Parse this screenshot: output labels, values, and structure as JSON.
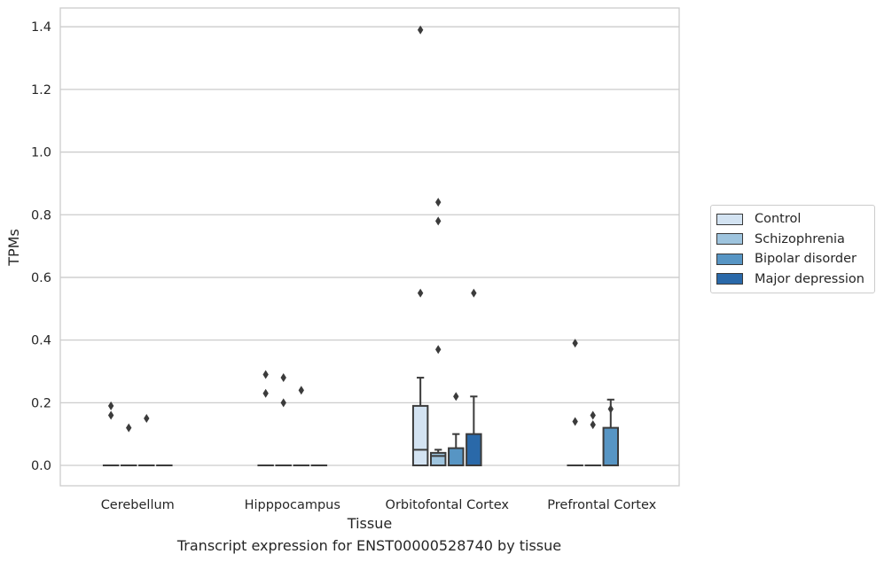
{
  "caption": "Transcript expression for ENST00000528740 by tissue",
  "chart_data": {
    "type": "box",
    "xlabel": "Tissue",
    "ylabel": "TPMs",
    "ylim": [
      -0.065,
      1.46
    ],
    "yticks": [
      "0.0",
      "0.2",
      "0.4",
      "0.6",
      "0.8",
      "1.0",
      "1.2",
      "1.4"
    ],
    "ytick_values": [
      0,
      0.2,
      0.4,
      0.6,
      0.8,
      1.0,
      1.2,
      1.4
    ],
    "grid": "horizontal",
    "legend_position": "right",
    "categories": [
      "Cerebellum",
      "Hipppocampus",
      "Orbitofontal Cortex",
      "Prefrontal Cortex"
    ],
    "series": [
      {
        "name": "Control",
        "color": "#d3e3f2",
        "boxes": [
          {
            "q1": 0,
            "median": 0,
            "q3": 0,
            "whislo": 0,
            "whishi": 0,
            "fliers": [
              0.19,
              0.16
            ]
          },
          {
            "q1": 0,
            "median": 0,
            "q3": 0,
            "whislo": 0,
            "whishi": 0,
            "fliers": [
              0.29,
              0.23
            ]
          },
          {
            "q1": 0,
            "median": 0.05,
            "q3": 0.19,
            "whislo": 0,
            "whishi": 0.28,
            "fliers": [
              1.39,
              0.55
            ]
          },
          {
            "q1": 0,
            "median": 0,
            "q3": 0,
            "whislo": 0,
            "whishi": 0,
            "fliers": [
              0.39,
              0.14
            ]
          }
        ]
      },
      {
        "name": "Schizophrenia",
        "color": "#9ec4de",
        "boxes": [
          {
            "q1": 0,
            "median": 0,
            "q3": 0,
            "whislo": 0,
            "whishi": 0,
            "fliers": [
              0.12
            ]
          },
          {
            "q1": 0,
            "median": 0,
            "q3": 0,
            "whislo": 0,
            "whishi": 0,
            "fliers": [
              0.28,
              0.2
            ]
          },
          {
            "q1": 0,
            "median": 0.03,
            "q3": 0.04,
            "whislo": 0,
            "whishi": 0.05,
            "fliers": [
              0.84,
              0.78,
              0.37
            ]
          },
          {
            "q1": 0,
            "median": 0,
            "q3": 0,
            "whislo": 0,
            "whishi": 0,
            "fliers": [
              0.16,
              0.13
            ]
          }
        ]
      },
      {
        "name": "Bipolar disorder",
        "color": "#5795c4",
        "boxes": [
          {
            "q1": 0,
            "median": 0,
            "q3": 0,
            "whislo": 0,
            "whishi": 0,
            "fliers": [
              0.15
            ]
          },
          {
            "q1": 0,
            "median": 0,
            "q3": 0,
            "whislo": 0,
            "whishi": 0,
            "fliers": [
              0.24
            ]
          },
          {
            "q1": 0,
            "median": 0,
            "q3": 0.055,
            "whislo": 0,
            "whishi": 0.1,
            "fliers": [
              0.22
            ]
          },
          {
            "q1": 0,
            "median": 0,
            "q3": 0.12,
            "whislo": 0,
            "whishi": 0.21,
            "fliers": [
              0.18
            ]
          }
        ]
      },
      {
        "name": "Major depression",
        "color": "#2a69a9",
        "boxes": [
          {
            "q1": 0,
            "median": 0,
            "q3": 0,
            "whislo": 0,
            "whishi": 0,
            "fliers": []
          },
          {
            "q1": 0,
            "median": 0,
            "q3": 0,
            "whislo": 0,
            "whishi": 0,
            "fliers": []
          },
          {
            "q1": 0,
            "median": 0,
            "q3": 0.1,
            "whislo": 0,
            "whishi": 0.22,
            "fliers": [
              0.55
            ]
          },
          null
        ]
      }
    ]
  }
}
